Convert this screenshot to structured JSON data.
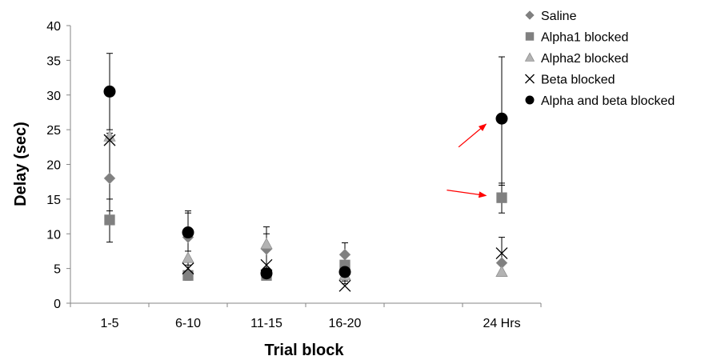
{
  "chart_data": {
    "type": "scatter",
    "xlabel": "Trial block",
    "ylabel": "Delay (sec)",
    "ylim": [
      0,
      40
    ],
    "yticks": [
      0,
      5,
      10,
      15,
      20,
      25,
      30,
      35,
      40
    ],
    "categories": [
      "1-5",
      "6-10",
      "11-15",
      "16-20",
      "",
      "24 Hrs"
    ],
    "grid": false,
    "legend": "top-right",
    "series": [
      {
        "name": "Saline",
        "marker": "diamond",
        "color": "#808080",
        "points": [
          {
            "cat": 0,
            "y": 18
          },
          {
            "cat": 1,
            "y": 9.5
          },
          {
            "cat": 2,
            "y": 7.8
          },
          {
            "cat": 3,
            "y": 7
          },
          {
            "cat": 5,
            "y": 5.8
          }
        ]
      },
      {
        "name": "Alpha1 blocked",
        "marker": "square",
        "color": "#808080",
        "points": [
          {
            "cat": 0,
            "y": 12
          },
          {
            "cat": 1,
            "y": 4
          },
          {
            "cat": 2,
            "y": 4
          },
          {
            "cat": 3,
            "y": 5.5
          },
          {
            "cat": 5,
            "y": 15.2
          }
        ]
      },
      {
        "name": "Alpha2 blocked",
        "marker": "triangle",
        "color": "#b3b3b3",
        "points": [
          {
            "cat": 0,
            "y": 24
          },
          {
            "cat": 1,
            "y": 6.5
          },
          {
            "cat": 2,
            "y": 8.5
          },
          {
            "cat": 3,
            "y": 4
          },
          {
            "cat": 5,
            "y": 4.5
          }
        ]
      },
      {
        "name": "Beta blocked",
        "marker": "x",
        "color": "#000000",
        "points": [
          {
            "cat": 0,
            "y": 23.5
          },
          {
            "cat": 1,
            "y": 5
          },
          {
            "cat": 2,
            "y": 5.5
          },
          {
            "cat": 3,
            "y": 2.5
          },
          {
            "cat": 5,
            "y": 7.2
          }
        ]
      },
      {
        "name": "Alpha and beta blocked",
        "marker": "circle",
        "color": "#000000",
        "points": [
          {
            "cat": 0,
            "y": 30.5
          },
          {
            "cat": 1,
            "y": 10.2
          },
          {
            "cat": 2,
            "y": 4.3
          },
          {
            "cat": 3,
            "y": 4.5
          },
          {
            "cat": 5,
            "y": 26.6
          }
        ]
      }
    ],
    "error_bars": [
      {
        "cat": 0,
        "low": 8.8,
        "high": 36
      },
      {
        "cat": 0,
        "low": 13.3,
        "high": 25
      },
      {
        "cat": 0,
        "low": 15,
        "high": 24.5
      },
      {
        "cat": 1,
        "low": 3.3,
        "high": 13.3
      },
      {
        "cat": 1,
        "low": 5.5,
        "high": 13
      },
      {
        "cat": 1,
        "low": 4,
        "high": 7.5
      },
      {
        "cat": 2,
        "low": 3.6,
        "high": 11
      },
      {
        "cat": 2,
        "low": 4,
        "high": 10
      },
      {
        "cat": 3,
        "low": 2.8,
        "high": 8.7
      },
      {
        "cat": 3,
        "low": 3.2,
        "high": 6
      },
      {
        "cat": 5,
        "low": 13,
        "high": 17.3
      },
      {
        "cat": 5,
        "low": 17,
        "high": 35.5
      },
      {
        "cat": 5,
        "low": 4.5,
        "high": 9.5
      }
    ],
    "annotations": [
      {
        "type": "arrow",
        "color": "#ff0000",
        "from": {
          "cat": 4.45,
          "y": 22.5
        },
        "to": {
          "cat": 4.8,
          "y": 25.8
        }
      },
      {
        "type": "arrow",
        "color": "#ff0000",
        "from": {
          "cat": 4.3,
          "y": 16.3
        },
        "to": {
          "cat": 4.8,
          "y": 15.5
        }
      }
    ]
  }
}
